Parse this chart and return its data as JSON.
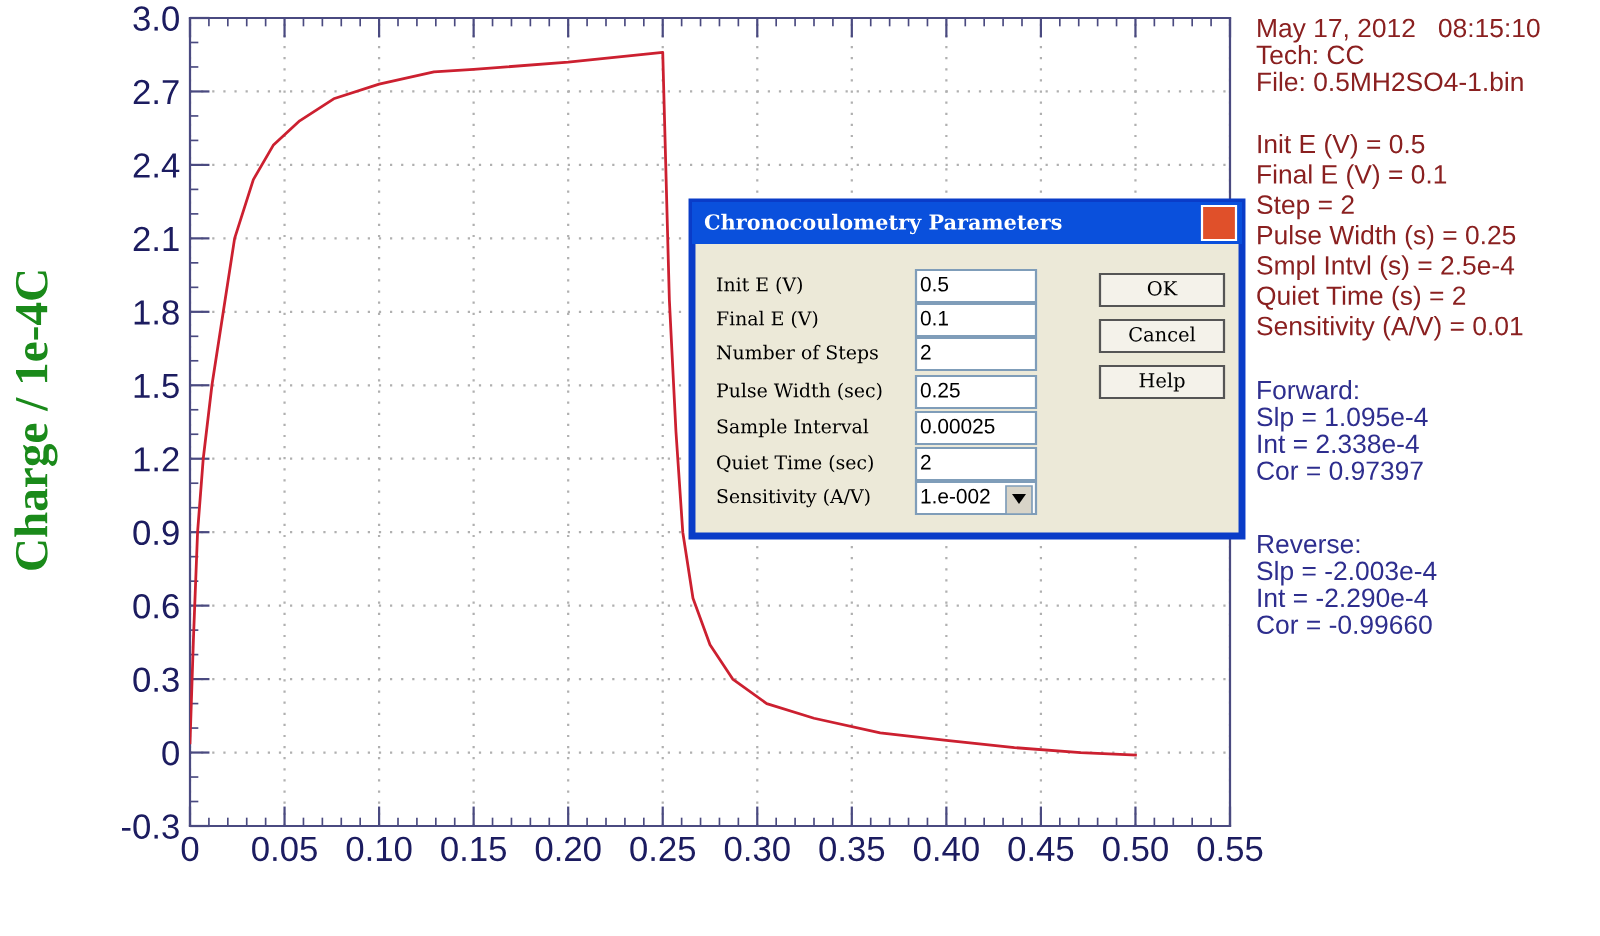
{
  "chart_data": {
    "type": "line",
    "ylabel": "Charge / 1e-4C",
    "x": [
      0,
      0.0018,
      0.004,
      0.007,
      0.0116,
      0.0176,
      0.0236,
      0.0335,
      0.044,
      0.058,
      0.076,
      0.1,
      0.129,
      0.15,
      0.2,
      0.25,
      0.2535,
      0.257,
      0.2606,
      0.266,
      0.275,
      0.287,
      0.305,
      0.33,
      0.365,
      0.4,
      0.436,
      0.471,
      0.5
    ],
    "series": [
      {
        "color": "#cc2030",
        "values": [
          0.04,
          0.46,
          0.9,
          1.2,
          1.5,
          1.8,
          2.1,
          2.34,
          2.48,
          2.58,
          2.67,
          2.73,
          2.78,
          2.79,
          2.82,
          2.86,
          1.85,
          1.31,
          0.9,
          0.63,
          0.44,
          0.3,
          0.2,
          0.14,
          0.08,
          0.05,
          0.02,
          0.0,
          -0.01
        ]
      }
    ],
    "xlim": [
      0,
      0.55
    ],
    "xticks": [
      0,
      0.05,
      {
        "value": 0.1,
        "label": "0.10"
      },
      0.15,
      {
        "value": 0.2,
        "label": "0.20"
      },
      0.25,
      {
        "value": 0.3,
        "label": "0.30"
      },
      0.35,
      {
        "value": 0.4,
        "label": "0.40"
      },
      0.45,
      {
        "value": 0.5,
        "label": "0.50"
      },
      0.55
    ],
    "ylim": [
      -0.3,
      3.0
    ],
    "yticks": [
      -0.3,
      0,
      0.3,
      0.6,
      0.9,
      1.2,
      1.5,
      1.8,
      2.1,
      2.4,
      2.7,
      {
        "value": 3.0,
        "label": "3.0"
      }
    ],
    "grid": true,
    "annotations": [
      "May 17, 2012   08:15:10\nTech: CC\nFile: 0.5MH2SO4-1.bin",
      "Init E (V) = 0.5\nFinal E (V) = 0.1\nStep = 2\nPulse Width (s) = 0.25\nSmpl Intvl (s) = 2.5e-4\nQuiet Time (s) = 2\nSensitivity (A/V) = 0.01",
      "Forward:\nSlp = 1.095e-4\nInt = 2.338e-4\nCor = 0.97397",
      "Reverse:\nSlp = -2.003e-4\nInt = -2.290e-4\nCor = -0.99660",
      "Chronocoulometry Parameters",
      "Init E (V)",
      "Final E (V)",
      "Number of Steps",
      "Pulse Width (sec)",
      "Sample Interval",
      "Quiet Time (sec)",
      "Sensitivity (A/V)",
      "0.5",
      "0.1",
      "2",
      "0.25",
      "0.00025",
      "2",
      "1.e-002",
      "OK",
      "Cancel",
      "Help"
    ]
  }
}
